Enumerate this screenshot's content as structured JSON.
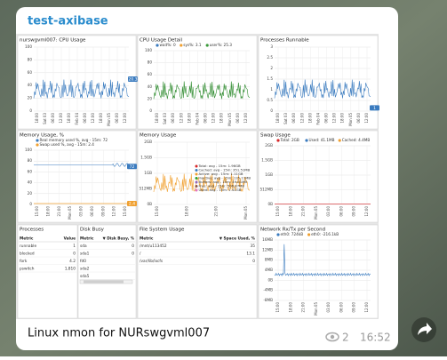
{
  "header": {
    "title": "test-axibase"
  },
  "widgets": [
    {
      "title": "nurswgvml007: CPU Usage",
      "yticks": [
        "100",
        "80",
        "60",
        "40",
        "20",
        "0"
      ],
      "xticks": [
        "18:00",
        "Sat 03",
        "06:00",
        "12:00",
        "18:00",
        "Feb 04",
        "06:00",
        "12:00",
        "18:00",
        "Mon 05",
        "06:00",
        "12:00"
      ],
      "color": "#3a7bbf",
      "badges": [
        {
          "text": "20.3",
          "color": "#3a7bbf"
        }
      ]
    },
    {
      "title": "CPU Usage Detail",
      "legend": [
        {
          "label": "wait%: 0",
          "color": "#3a7bbf"
        },
        {
          "label": "sys%: 3.1",
          "color": "#f0a030"
        },
        {
          "label": "user%: 25.3",
          "color": "#3c9a3c"
        }
      ],
      "yticks": [
        "100",
        "80",
        "60",
        "40",
        "20",
        "0"
      ],
      "xticks": [
        "18:00",
        "Sat 03",
        "06:00",
        "12:00",
        "18:00",
        "Feb 04",
        "06:00",
        "12:00",
        "18:00",
        "Mon 05",
        "06:00",
        "12:00"
      ],
      "color": "#2e8b2e"
    },
    {
      "title": "Processes Runnable",
      "yticks": [
        "3",
        "2.5",
        "2",
        "1.5",
        "1",
        "0.5",
        "0"
      ],
      "xticks": [
        "18:00",
        "Sat 03",
        "06:00",
        "12:00",
        "18:00",
        "Feb 04",
        "06:00",
        "12:00",
        "18:00",
        "Mon 05",
        "06:00",
        "12:00"
      ],
      "color": "#3a7bbf",
      "badges": [
        {
          "text": "1",
          "color": "#3a7bbf"
        }
      ]
    },
    {
      "title": "Memory Usage, %",
      "legend": [
        {
          "label": "Real memory used %, avg - 15m: 72",
          "color": "#3a7bbf"
        },
        {
          "label": "Swap used %, avg - 15m: 2.4",
          "color": "#f0a030"
        }
      ],
      "yticks": [
        "100",
        "80",
        "60",
        "40",
        "20",
        "0"
      ],
      "xticks": [
        "15:00",
        "18:00",
        "21:00",
        "Mon 05",
        "03:00",
        "06:00",
        "09:00",
        "12:00",
        "15:00"
      ],
      "color": "#3a7bbf",
      "badges": [
        {
          "text": "72",
          "color": "#3a7bbf"
        },
        {
          "text": "2.4",
          "color": "#f0a030"
        }
      ]
    },
    {
      "title": "Memory Usage",
      "legend": [
        {
          "label": "Total: avg - 15m: 1.96GB",
          "color": "#d62728"
        },
        {
          "label": "Cached: avg - 15m: 351.51MB",
          "color": "#3a7bbf"
        },
        {
          "label": "Active: avg - 15m: 1.11GB",
          "color": "#f0a030"
        },
        {
          "label": "Inactive: avg - 15m: 135.11MB",
          "color": "#2ca02c"
        },
        {
          "label": "Buffers: avg - 15m: 49.61MB",
          "color": "#9467bd"
        },
        {
          "label": "Free: avg - 15m: 506.87MB",
          "color": "#8c564b"
        },
        {
          "label": "Used: avg - 15m: 1.41GB",
          "color": "#e377c2"
        }
      ],
      "yticks": [
        "2GB",
        "1.5GB",
        "1GB",
        "512MB",
        "0B"
      ],
      "xticks": [
        "15:00",
        "18:00",
        "21:00",
        "Mon 05"
      ],
      "color": "#f0a030"
    },
    {
      "title": "Swap Usage",
      "legend": [
        {
          "label": "Total: 2GB",
          "color": "#d62728"
        },
        {
          "label": "Used: 41.1MB",
          "color": "#3a7bbf"
        },
        {
          "label": "Cached: 4.4MB",
          "color": "#f0a030"
        }
      ],
      "yticks": [
        "2GB",
        "1.5GB",
        "1GB",
        "512MB",
        "0B"
      ],
      "xticks": [
        "15:00",
        "18:00",
        "21:00",
        "Mon 05",
        "03:00",
        "06:00",
        "09:00",
        "12:00"
      ],
      "color": "#d62728"
    },
    {
      "title": "Network Rx/Tx per Second",
      "legend": [
        {
          "label": "eth0: 724kB",
          "color": "#3a7bbf"
        },
        {
          "label": "eth0: -216.1kB",
          "color": "#f0a030"
        }
      ],
      "yticks": [
        "16MB",
        "12MB",
        "8MB",
        "4MB",
        "0B",
        "-4MB",
        "-8MB"
      ],
      "xticks": [
        "15:00",
        "18:00",
        "21:00",
        "Mon 05",
        "03:00",
        "06:00",
        "09:00",
        "12:00"
      ],
      "color": "#3a7bbf"
    }
  ],
  "tables": [
    {
      "title": "Processes",
      "header": [
        "Metric",
        "Value"
      ],
      "rows": [
        [
          "runnable",
          "1"
        ],
        [
          "blocked",
          "0"
        ],
        [
          "fork",
          "4.2"
        ],
        [
          "pswitch",
          "1,810"
        ]
      ]
    },
    {
      "title": "Disk Busy",
      "header": [
        "Metric",
        "▼ Disk Busy, %"
      ],
      "rows": [
        [
          "sda",
          "0"
        ],
        [
          "sda1",
          "0"
        ],
        [
          "fd0"
        ],
        [
          "sda2"
        ],
        [
          "sda5"
        ]
      ]
    },
    {
      "title": "File System Usage",
      "header": [
        "Metric",
        "▼ Space Used, %"
      ],
      "rows": [
        [
          "/mnt/u113452",
          "35"
        ],
        [
          "/",
          "13.1"
        ],
        [
          "/var/lib/lxcfs",
          "0"
        ]
      ]
    }
  ],
  "caption": "Linux nmon for NURswgvml007",
  "views": "2",
  "time": "16:52"
}
